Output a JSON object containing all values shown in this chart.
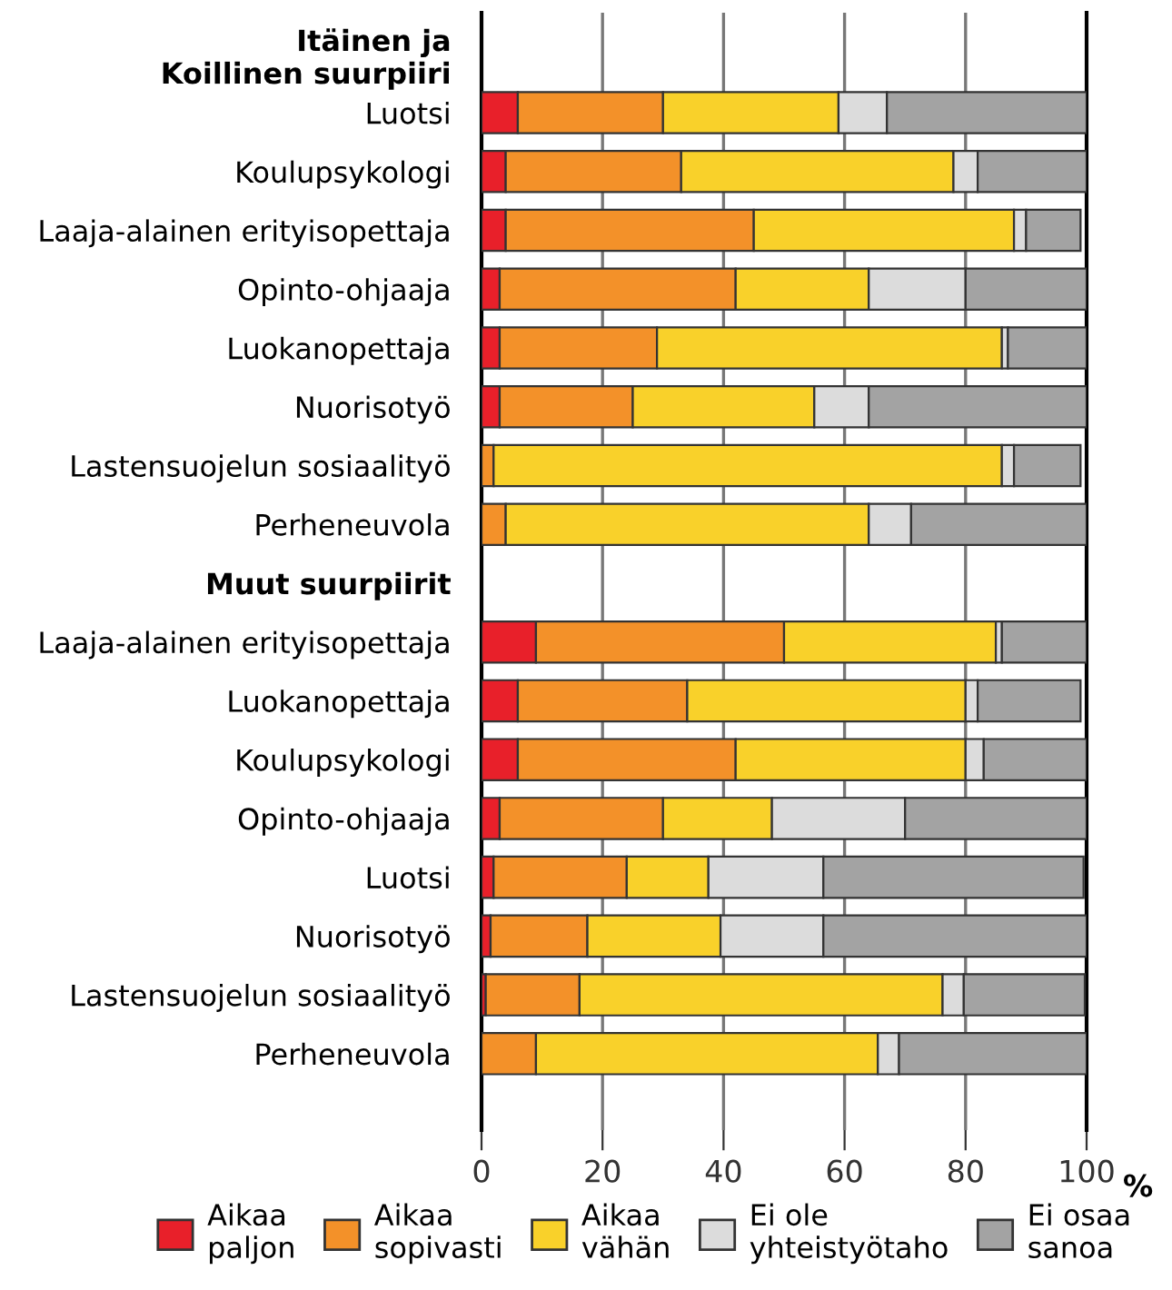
{
  "chart_data": {
    "type": "bar",
    "orientation": "horizontal",
    "stacked": true,
    "categories": [
      "Itäinen ja\nKoillinen suurpiiri",
      "Luotsi",
      "Koulupsykologi",
      "Laaja-alainen erityisopettaja",
      "Opinto-ohjaaja",
      "Luokanopettaja",
      "Nuorisotyö",
      "Lastensuojelun sosiaalityö",
      "Perheneuvola",
      "Muut suurpiirit",
      "Laaja-alainen erityisopettaja",
      "Luokanopettaja",
      "Koulupsykologi",
      "Opinto-ohjaaja",
      "Luotsi",
      "Nuorisotyö",
      "Lastensuojelun sosiaalityö",
      "Perheneuvola"
    ],
    "series": [
      {
        "name": "Aikaa\npaljon",
        "color": "#e8202a",
        "values": [
          null,
          6,
          4,
          4,
          3,
          3,
          3,
          0,
          0,
          null,
          9,
          6,
          6,
          3,
          2,
          1.5,
          0.7,
          0
        ]
      },
      {
        "name": "Aikaa\nsopivasti",
        "color": "#f39129",
        "values": [
          null,
          24,
          29,
          41,
          39,
          26,
          22,
          2,
          4,
          null,
          41,
          28,
          36,
          27,
          22,
          16,
          15.5,
          9
        ]
      },
      {
        "name": "Aikaa\nvähän",
        "color": "#f9d12a",
        "values": [
          null,
          29,
          45,
          43,
          22,
          57,
          30,
          84,
          60,
          null,
          35,
          46,
          38,
          18,
          13.5,
          22,
          60,
          56.5
        ]
      },
      {
        "name": "Ei ole\nyhteistyötaho",
        "color": "#dcdcdc",
        "values": [
          null,
          8,
          4,
          2,
          16,
          1,
          9,
          2,
          7,
          null,
          1,
          2,
          3,
          22,
          19,
          17,
          3.5,
          3.5
        ]
      },
      {
        "name": "Ei osaa\nsanoa",
        "color": "#a3a3a3",
        "values": [
          null,
          33,
          18,
          9,
          20,
          13,
          36,
          11,
          29,
          null,
          14,
          17,
          17,
          30,
          43,
          43.5,
          20,
          31
        ]
      }
    ],
    "xlim": [
      0,
      100
    ],
    "xticks": [
      0,
      20,
      40,
      60,
      80,
      100
    ],
    "xlabel": "%",
    "grid": "x",
    "legend": "bottom"
  }
}
